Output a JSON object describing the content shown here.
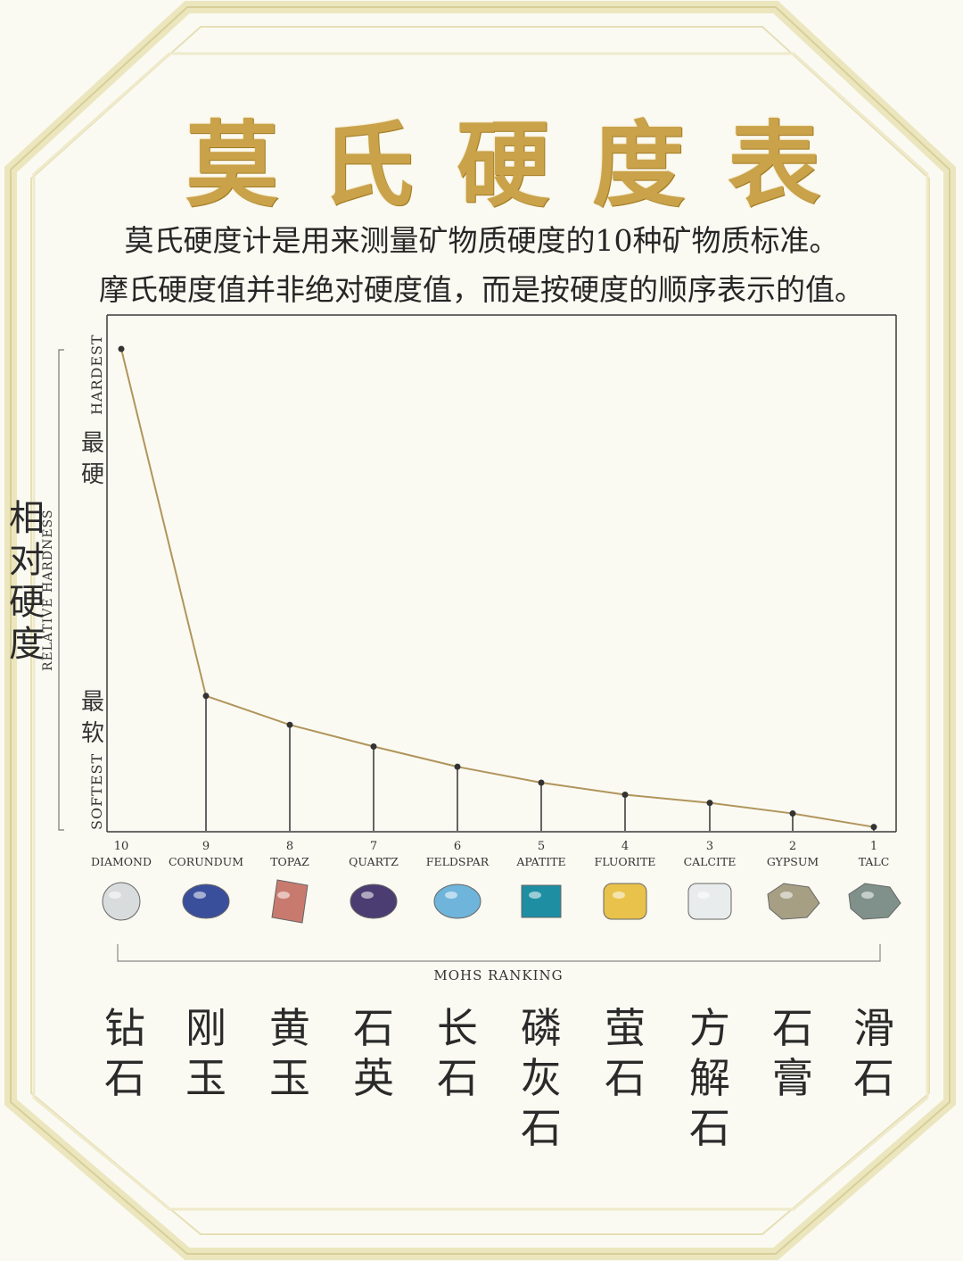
{
  "title": "莫氏硬度表",
  "subtitle_lines": [
    "莫氏硬度计是用来测量矿物质硬度的10种矿物质标准。",
    "摩氏硬度值并非绝对硬度值，而是按硬度的顺序表示的值。"
  ],
  "y_axis": {
    "label_zh": "相对硬度",
    "label_en": "RELATIVE HARDNESS",
    "top_en": "HARDEST",
    "top_zh": "最硬",
    "bottom_en": "SOFTEST",
    "bottom_zh": "最软"
  },
  "x_axis": {
    "label_en": "MOHS RANKING"
  },
  "colors": {
    "line": "#b0955c",
    "stem": "#333333",
    "title_gold": "#c9a24a",
    "frame": "#e8e1b4"
  },
  "chart_data": {
    "type": "line",
    "categories": [
      "10",
      "9",
      "8",
      "7",
      "6",
      "5",
      "4",
      "3",
      "2",
      "1"
    ],
    "mineral_names_en": [
      "DIAMOND",
      "CORUNDUM",
      "TOPAZ",
      "QUARTZ",
      "FELDSPAR",
      "APATITE",
      "FLUORITE",
      "CALCITE",
      "GYPSUM",
      "TALC"
    ],
    "mineral_names_zh": [
      "钻石",
      "刚玉",
      "黄玉",
      "石英",
      "长石",
      "磷灰石",
      "萤石",
      "方解石",
      "石膏",
      "滑石"
    ],
    "series": [
      {
        "values": [
          1.0,
          0.28,
          0.22,
          0.175,
          0.133,
          0.1,
          0.075,
          0.058,
          0.036,
          0.008
        ]
      }
    ],
    "ylim": [
      0,
      1.0
    ],
    "grid": false,
    "gem_icons": [
      {
        "icon": "round-diamond-icon",
        "color": "#d9dcdc"
      },
      {
        "icon": "oval-sapphire-icon",
        "color": "#3a4f9c"
      },
      {
        "icon": "emerald-cut-topaz-icon",
        "color": "#c97a6e"
      },
      {
        "icon": "oval-quartz-icon",
        "color": "#4b3d72"
      },
      {
        "icon": "oval-moonstone-icon",
        "color": "#6fb4da"
      },
      {
        "icon": "square-apatite-icon",
        "color": "#1e8ea3"
      },
      {
        "icon": "cushion-fluorite-icon",
        "color": "#e8c24a"
      },
      {
        "icon": "cushion-calcite-icon",
        "color": "#e9ecec"
      },
      {
        "icon": "rough-gypsum-icon",
        "color": "#a79f84"
      },
      {
        "icon": "rough-talc-icon",
        "color": "#7f918a"
      }
    ]
  }
}
